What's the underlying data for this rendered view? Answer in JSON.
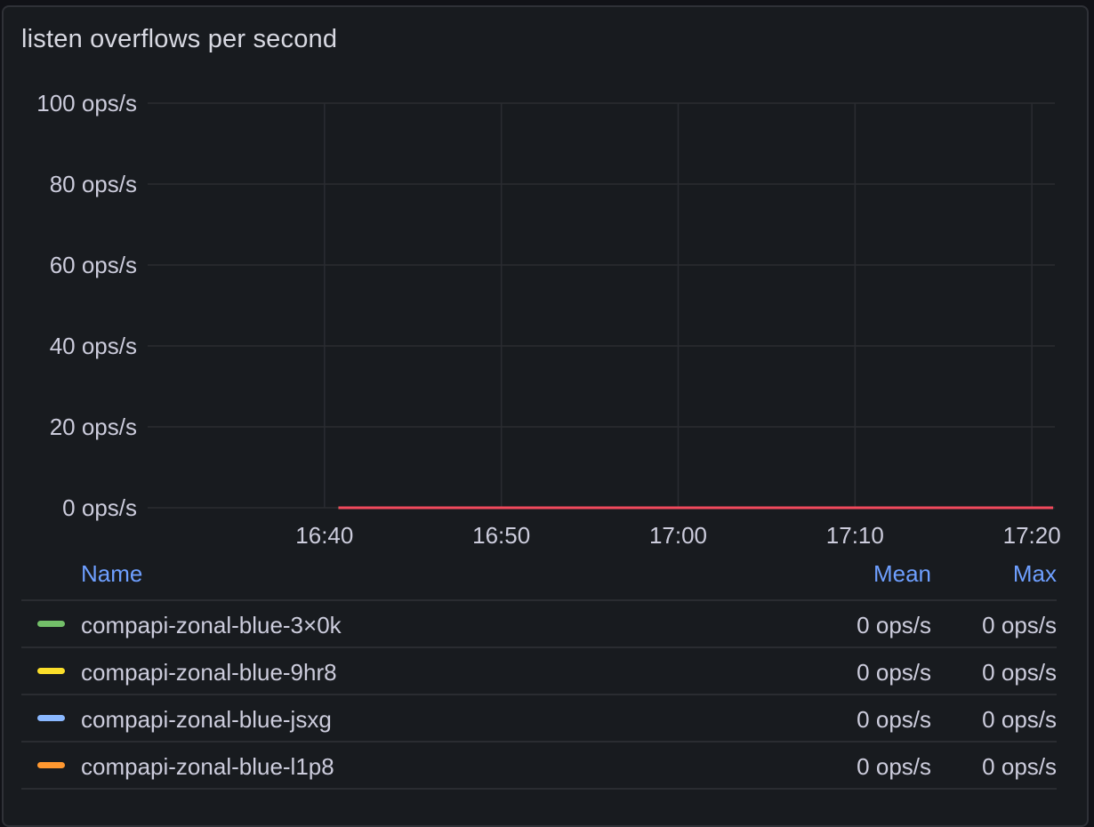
{
  "panel": {
    "title": "listen overflows per second"
  },
  "chart_data": {
    "type": "line",
    "title": "listen overflows per second",
    "y_tick_labels": [
      "0 ops/s",
      "20 ops/s",
      "40 ops/s",
      "60 ops/s",
      "80 ops/s",
      "100 ops/s"
    ],
    "y_ticks": [
      0,
      20,
      40,
      60,
      80,
      100
    ],
    "x_tick_labels": [
      "16:40",
      "16:50",
      "17:00",
      "17:10",
      "17:20"
    ],
    "x_ticks_min": [
      1000,
      1010,
      1020,
      1030,
      1040
    ],
    "xlim_min": [
      990,
      1041.3
    ],
    "ylim": [
      0,
      100
    ],
    "unit": "ops/s",
    "grid": true,
    "series": [
      {
        "name": "compapi-zonal-blue-3×0k",
        "color": "#73bf69",
        "x_min": [
          1000.8,
          1041.2
        ],
        "y": [
          0,
          0
        ]
      },
      {
        "name": "compapi-zonal-blue-9hr8",
        "color": "#fade2a",
        "x_min": [
          1000.8,
          1041.2
        ],
        "y": [
          0,
          0
        ]
      },
      {
        "name": "compapi-zonal-blue-jsxg",
        "color": "#8ab8ff",
        "x_min": [
          1000.8,
          1041.2
        ],
        "y": [
          0,
          0
        ]
      },
      {
        "name": "compapi-zonal-blue-l1p8",
        "color": "#ff9830",
        "x_min": [
          1000.8,
          1041.2
        ],
        "y": [
          0,
          0
        ]
      },
      {
        "name": "",
        "color": "#f2495c",
        "x_min": [
          1000.8,
          1041.2
        ],
        "y": [
          0,
          0
        ]
      }
    ]
  },
  "legend": {
    "headers": {
      "name": "Name",
      "mean": "Mean",
      "max": "Max"
    },
    "rows": [
      {
        "name": "compapi-zonal-blue-3×0k",
        "mean": "0 ops/s",
        "max": "0 ops/s",
        "color": "#73bf69"
      },
      {
        "name": "compapi-zonal-blue-9hr8",
        "mean": "0 ops/s",
        "max": "0 ops/s",
        "color": "#fade2a"
      },
      {
        "name": "compapi-zonal-blue-jsxg",
        "mean": "0 ops/s",
        "max": "0 ops/s",
        "color": "#8ab8ff"
      },
      {
        "name": "compapi-zonal-blue-l1p8",
        "mean": "0 ops/s",
        "max": "0 ops/s",
        "color": "#ff9830"
      }
    ]
  }
}
